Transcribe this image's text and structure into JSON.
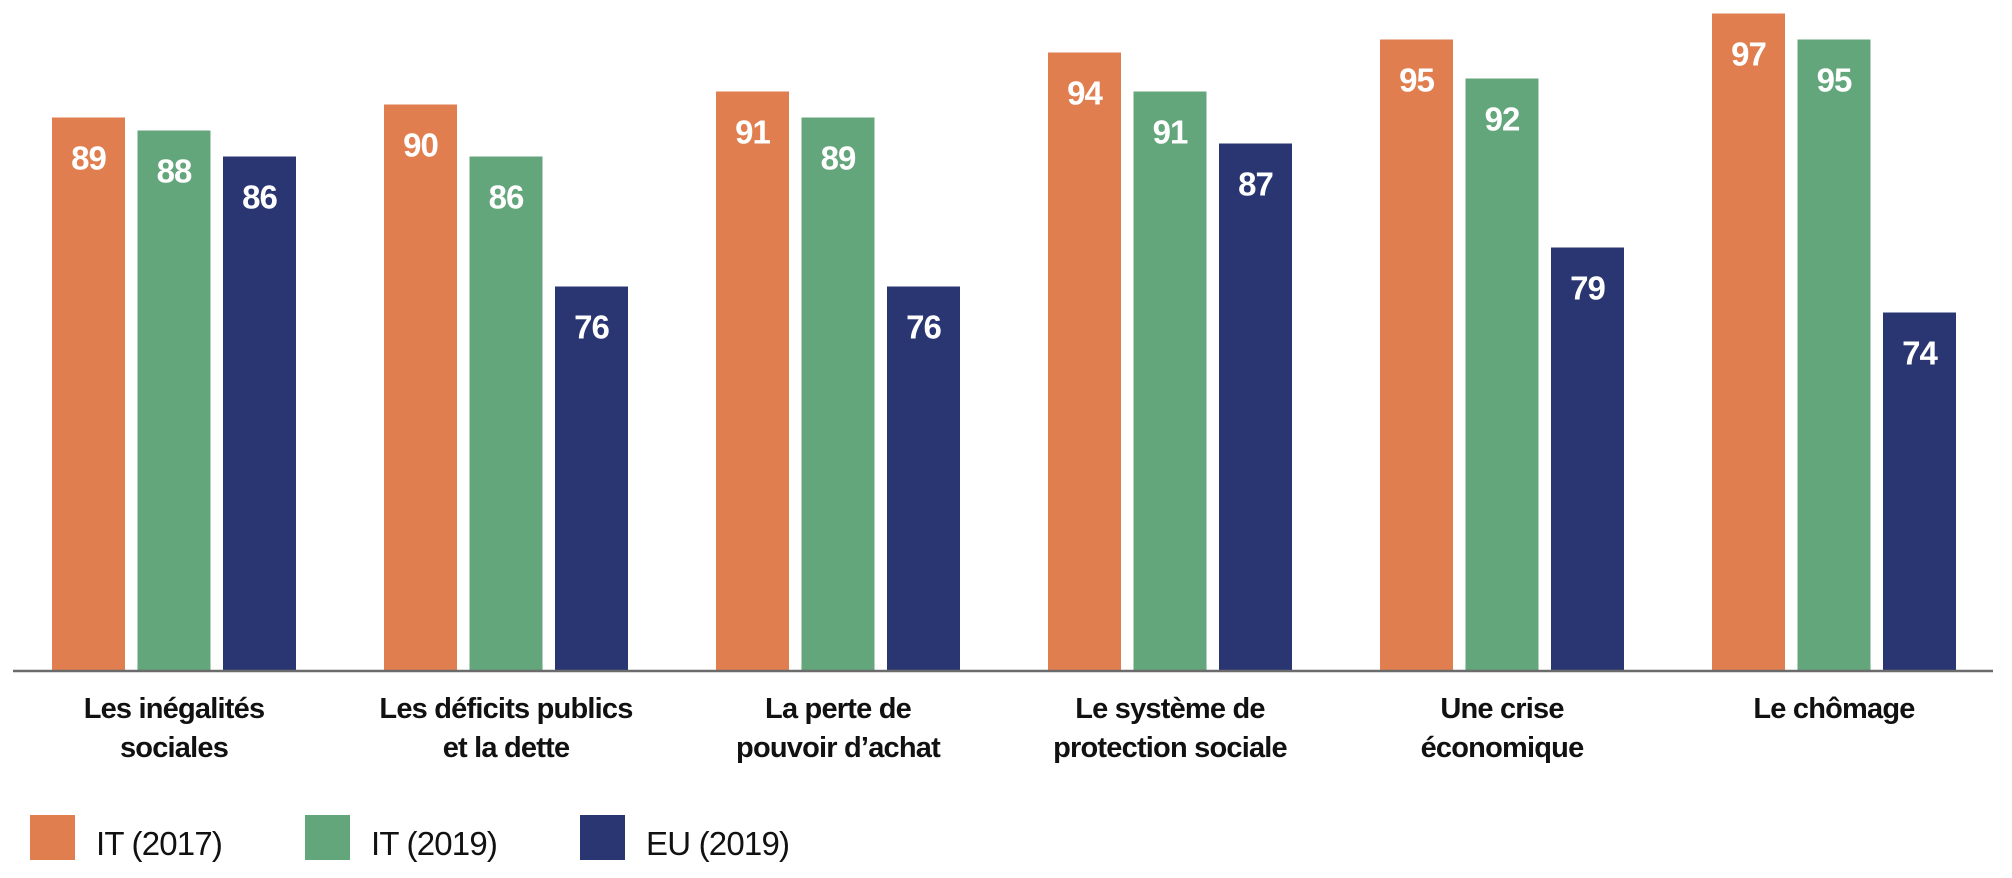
{
  "chart_data": {
    "type": "bar",
    "title": "",
    "xlabel": "",
    "ylabel": "",
    "ylim": [
      46.5,
      100
    ],
    "grid": false,
    "legend_position": "bottom-left",
    "categories": [
      [
        "Les inégalités",
        "sociales"
      ],
      [
        "Les déficits publics",
        "et la dette"
      ],
      [
        "La perte de",
        "pouvoir d’achat"
      ],
      [
        "Le système de",
        "protection sociale"
      ],
      [
        "Une crise",
        "économique"
      ],
      [
        "Le chômage"
      ]
    ],
    "series": [
      {
        "name": "IT (2017)",
        "color": "#E07E50",
        "values": [
          89,
          90,
          91,
          94,
          95,
          97
        ]
      },
      {
        "name": "IT (2019)",
        "color": "#64A67B",
        "values": [
          88,
          86,
          89,
          91,
          92,
          95
        ]
      },
      {
        "name": "EU (2019)",
        "color": "#2A3672",
        "values": [
          86,
          76,
          76,
          87,
          79,
          74
        ]
      }
    ]
  }
}
